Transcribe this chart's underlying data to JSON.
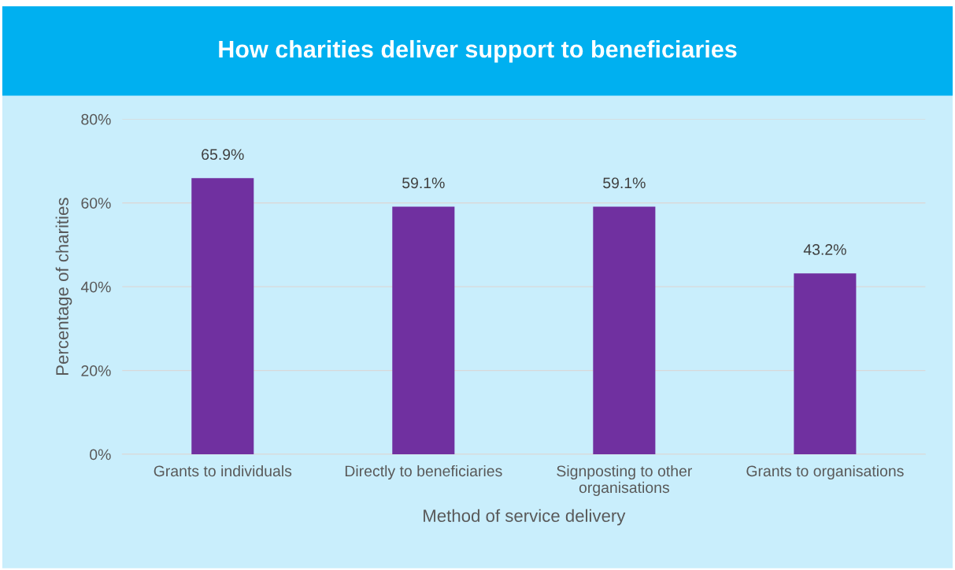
{
  "chart_data": {
    "type": "bar",
    "title": "How charities deliver support to beneficiaries",
    "xlabel": "Method of service delivery",
    "ylabel": "Percentage of charities",
    "categories": [
      "Grants to individuals",
      "Directly to beneficiaries",
      "Signposting to other\norganisations",
      "Grants to organisations"
    ],
    "values": [
      65.9,
      59.1,
      59.1,
      43.2
    ],
    "value_labels": [
      "65.9%",
      "59.1%",
      "59.1%",
      "43.2%"
    ],
    "color": "#7030a0",
    "ylim": [
      0,
      80
    ],
    "yticks": [
      {
        "value": 0,
        "label": "0%"
      },
      {
        "value": 20,
        "label": "20%"
      },
      {
        "value": 40,
        "label": "40%"
      },
      {
        "value": 60,
        "label": "60%"
      },
      {
        "value": 80,
        "label": "80%"
      }
    ],
    "grid": "y",
    "legend": false
  }
}
